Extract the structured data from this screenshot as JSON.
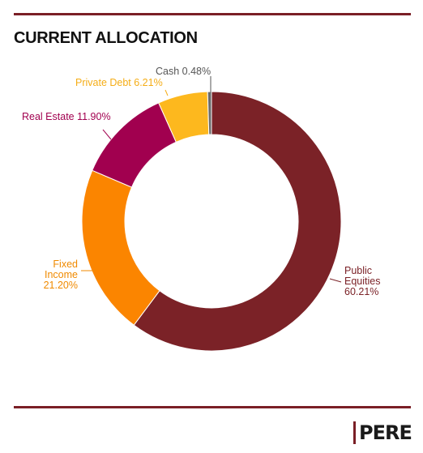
{
  "header": {
    "title": "CURRENT ALLOCATION"
  },
  "brand": {
    "name": "PERE",
    "color": "#7a1f26"
  },
  "chart_data": {
    "type": "pie",
    "style": "donut",
    "title": "CURRENT ALLOCATION",
    "categories": [
      "Public Equities",
      "Fixed Income",
      "Real Estate",
      "Private Debt",
      "Cash"
    ],
    "values": [
      60.21,
      21.2,
      11.9,
      6.21,
      0.48
    ],
    "unit": "%",
    "colors": [
      "#7b2227",
      "#fb8500",
      "#a1004f",
      "#fdb81e",
      "#6b6b6b"
    ],
    "label_colors": [
      "#7b2227",
      "#f08a00",
      "#a1004f",
      "#f5ad16",
      "#555555"
    ],
    "labels": [
      [
        "Public",
        "Equities",
        "60.21%"
      ],
      [
        "Fixed",
        "Income",
        "21.20%"
      ],
      [
        "Real Estate 11.90%"
      ],
      [
        "Private Debt 6.21%"
      ],
      [
        "Cash 0.48%"
      ]
    ]
  }
}
